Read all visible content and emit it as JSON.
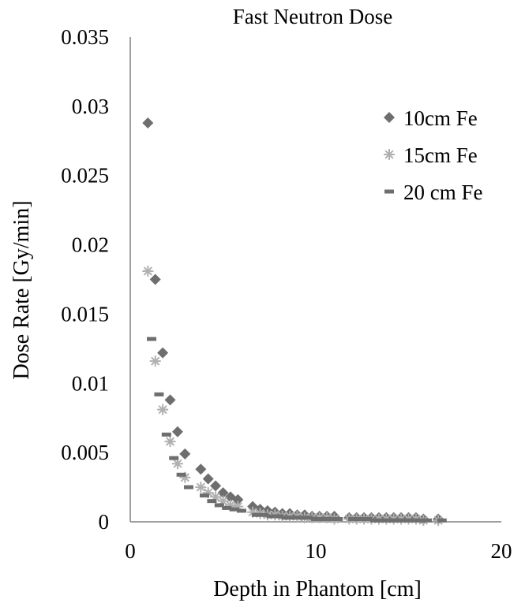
{
  "chart_data": {
    "type": "scatter",
    "title": "Fast Neutron Dose",
    "xlabel": "Depth in Phantom [cm]",
    "ylabel": "Dose Rate [Gy/min]",
    "xlim": [
      0,
      20
    ],
    "ylim": [
      0,
      0.035
    ],
    "xticks": [
      "0",
      "10",
      "20"
    ],
    "yticks": [
      "0",
      "0.005",
      "0.01",
      "0.015",
      "0.02",
      "0.025",
      "0.03",
      "0.035"
    ],
    "grid": false,
    "legend_position": "top-right",
    "series": [
      {
        "name": "10cm Fe",
        "marker": "diamond",
        "color": "#6e6e6e",
        "points": [
          [
            0.95,
            0.0288
          ],
          [
            1.35,
            0.0175
          ],
          [
            1.75,
            0.0122
          ],
          [
            2.15,
            0.0088
          ],
          [
            2.55,
            0.0065
          ],
          [
            2.95,
            0.0049
          ],
          [
            3.8,
            0.0038
          ],
          [
            4.2,
            0.0031
          ],
          [
            4.6,
            0.0026
          ],
          [
            5.0,
            0.0021
          ],
          [
            5.4,
            0.0018
          ],
          [
            5.8,
            0.0016
          ],
          [
            6.6,
            0.0011
          ],
          [
            7.0,
            0.0009
          ],
          [
            7.4,
            0.0008
          ],
          [
            7.8,
            0.0007
          ],
          [
            8.2,
            0.0006
          ],
          [
            8.6,
            0.0006
          ],
          [
            9.0,
            0.0005
          ],
          [
            9.4,
            0.0005
          ],
          [
            9.8,
            0.0004
          ],
          [
            10.2,
            0.0004
          ],
          [
            10.6,
            0.0004
          ],
          [
            11.0,
            0.0004
          ],
          [
            11.8,
            0.0003
          ],
          [
            12.2,
            0.0003
          ],
          [
            12.6,
            0.0003
          ],
          [
            13.0,
            0.0003
          ],
          [
            13.4,
            0.0003
          ],
          [
            13.8,
            0.0003
          ],
          [
            14.2,
            0.0003
          ],
          [
            14.6,
            0.0003
          ],
          [
            15.0,
            0.0003
          ],
          [
            15.4,
            0.0003
          ],
          [
            15.8,
            0.0002
          ],
          [
            16.6,
            0.0002
          ]
        ]
      },
      {
        "name": "15cm Fe",
        "marker": "asterisk",
        "color": "#b0b0b0",
        "points": [
          [
            0.95,
            0.0181
          ],
          [
            1.35,
            0.0116
          ],
          [
            1.75,
            0.0081
          ],
          [
            2.15,
            0.0058
          ],
          [
            2.55,
            0.0042
          ],
          [
            2.95,
            0.0032
          ],
          [
            3.8,
            0.0025
          ],
          [
            4.2,
            0.0021
          ],
          [
            4.6,
            0.0018
          ],
          [
            5.0,
            0.0015
          ],
          [
            5.4,
            0.0012
          ],
          [
            5.8,
            0.0011
          ],
          [
            6.6,
            0.0007
          ],
          [
            7.0,
            0.0006
          ],
          [
            7.4,
            0.0005
          ],
          [
            7.8,
            0.0005
          ],
          [
            8.2,
            0.0004
          ],
          [
            8.6,
            0.0004
          ],
          [
            9.0,
            0.0004
          ],
          [
            9.4,
            0.0003
          ],
          [
            9.8,
            0.0003
          ],
          [
            10.2,
            0.0003
          ],
          [
            10.6,
            0.0003
          ],
          [
            11.0,
            0.0002
          ],
          [
            11.8,
            0.0002
          ],
          [
            12.2,
            0.0002
          ],
          [
            12.6,
            0.0002
          ],
          [
            13.0,
            0.0002
          ],
          [
            13.4,
            0.0002
          ],
          [
            13.8,
            0.0002
          ],
          [
            14.2,
            0.0002
          ],
          [
            14.6,
            0.0002
          ],
          [
            15.0,
            0.0002
          ],
          [
            15.4,
            0.0002
          ],
          [
            15.8,
            0.0001
          ],
          [
            16.6,
            0.0001
          ]
        ]
      },
      {
        "name": "20 cm Fe",
        "marker": "dash",
        "color": "#6e6e6e",
        "points": [
          [
            1.15,
            0.0132
          ],
          [
            1.55,
            0.0092
          ],
          [
            1.95,
            0.0063
          ],
          [
            2.35,
            0.0046
          ],
          [
            2.75,
            0.0034
          ],
          [
            3.15,
            0.0025
          ],
          [
            4.0,
            0.0019
          ],
          [
            4.4,
            0.0015
          ],
          [
            4.8,
            0.0012
          ],
          [
            5.2,
            0.001
          ],
          [
            5.6,
            0.0009
          ],
          [
            6.0,
            0.0008
          ],
          [
            6.8,
            0.0005
          ],
          [
            7.2,
            0.0005
          ],
          [
            7.6,
            0.0004
          ],
          [
            8.0,
            0.0004
          ],
          [
            8.4,
            0.0003
          ],
          [
            8.8,
            0.0003
          ],
          [
            9.2,
            0.0003
          ],
          [
            9.6,
            0.0003
          ],
          [
            10.0,
            0.0002
          ],
          [
            10.4,
            0.0002
          ],
          [
            10.8,
            0.0002
          ],
          [
            11.2,
            0.0002
          ],
          [
            12.0,
            0.0002
          ],
          [
            12.4,
            0.0002
          ],
          [
            12.8,
            0.0002
          ],
          [
            13.2,
            0.0001
          ],
          [
            13.6,
            0.0001
          ],
          [
            14.0,
            0.0001
          ],
          [
            14.4,
            0.0001
          ],
          [
            14.8,
            0.0001
          ],
          [
            15.2,
            0.0001
          ],
          [
            15.6,
            0.0001
          ],
          [
            16.0,
            0.0001
          ],
          [
            16.8,
            0.0001
          ]
        ]
      }
    ]
  }
}
